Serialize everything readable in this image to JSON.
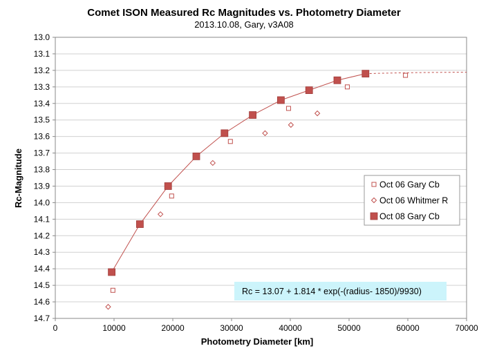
{
  "chart_data": {
    "type": "scatter",
    "title": "Comet ISON Measured Rc Magnitudes vs. Photometry Diameter",
    "subtitle": "2013.10.08,  Gary, v3A08",
    "xlabel": "Photometry Diameter  [km]",
    "ylabel": "Rc-Magnitude",
    "xlim": [
      0,
      70000
    ],
    "ylim": [
      13.0,
      14.7
    ],
    "y_inverted": true,
    "x_ticks": [
      0,
      10000,
      20000,
      30000,
      40000,
      50000,
      60000,
      70000
    ],
    "y_ticks": [
      13.0,
      13.1,
      13.2,
      13.3,
      13.4,
      13.5,
      13.6,
      13.7,
      13.8,
      13.9,
      14.0,
      14.1,
      14.2,
      14.3,
      14.4,
      14.5,
      14.6,
      14.7
    ],
    "grid": "horizontal",
    "legend_position": "right",
    "colors": {
      "series": "#c0504d",
      "formula_bg": "#ccf4fb"
    },
    "series": [
      {
        "name": "Oct 06 Gary Cb",
        "marker": "open-square",
        "x": [
          9800,
          19800,
          29800,
          39700,
          49700,
          59600
        ],
        "y": [
          14.53,
          13.96,
          13.63,
          13.43,
          13.3,
          13.23
        ]
      },
      {
        "name": "Oct 06 Whitmer R",
        "marker": "open-diamond",
        "x": [
          9000,
          17900,
          26800,
          35700,
          40100,
          44600
        ],
        "y": [
          14.63,
          14.07,
          13.76,
          13.58,
          13.53,
          13.46
        ]
      },
      {
        "name": "Oct 08 Gary Cb",
        "marker": "filled-square",
        "x": [
          9600,
          14400,
          19200,
          24000,
          28800,
          33600,
          38400,
          43200,
          48000,
          52800
        ],
        "y": [
          14.42,
          14.13,
          13.9,
          13.72,
          13.58,
          13.47,
          13.38,
          13.32,
          13.26,
          13.22
        ]
      }
    ],
    "fit": {
      "formula": "Rc = 13.07 + 1.814 * exp(-(radius- 1850)/9930)",
      "a": 13.07,
      "b": 1.814,
      "r0": 1850,
      "scale": 9930,
      "solid_x_range": [
        9600,
        52800
      ],
      "dashed_x_range": [
        52800,
        70000
      ]
    }
  }
}
